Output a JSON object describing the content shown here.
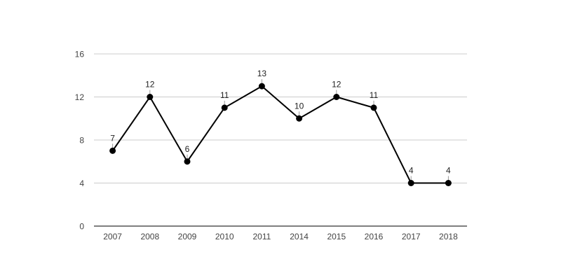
{
  "chart_data": {
    "type": "line",
    "categories": [
      "2007",
      "2008",
      "2009",
      "2010",
      "2011",
      "2014",
      "2015",
      "2016",
      "2017",
      "2018"
    ],
    "series": [
      {
        "values": [
          7,
          12,
          6,
          11,
          13,
          10,
          12,
          11,
          4,
          4
        ]
      }
    ],
    "title": "",
    "xlabel": "",
    "ylabel": "",
    "ylim": [
      0,
      16
    ],
    "yticks": [
      0,
      4,
      8,
      12,
      16
    ],
    "ytick_labels": [
      "0",
      "4",
      "8",
      "12",
      "16"
    ],
    "grid": true,
    "legend": "none",
    "data_labels": true,
    "colors": {
      "line": "#000000",
      "marker": "#000000",
      "gridline": "#cccccc",
      "axis": "#333333",
      "tick_text": "#444444",
      "label_text": "#222222",
      "leader": "#999999"
    }
  }
}
